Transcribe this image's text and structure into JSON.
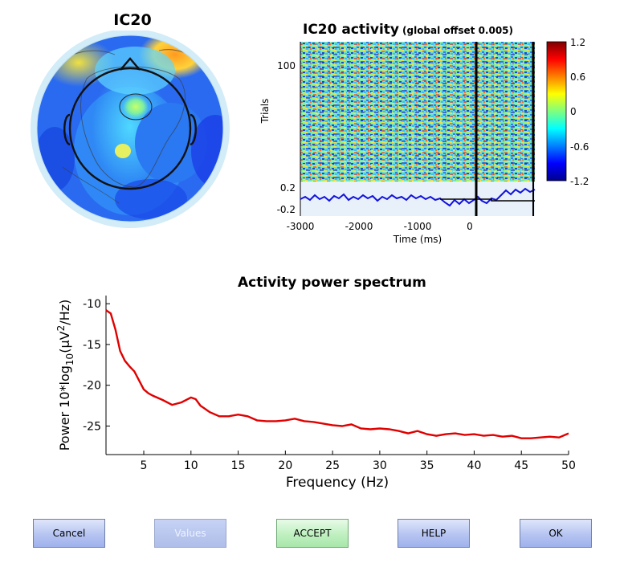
{
  "topomap": {
    "title": "IC20"
  },
  "erpimage": {
    "title": "IC20 activity",
    "subtitle": "(global offset 0.005)",
    "ylabel": "Trials",
    "ytick_top": "100",
    "xlabel": "Time (ms)",
    "xticks": [
      "-3000",
      "-2000",
      "-1000",
      "0"
    ],
    "erp_ticks": [
      "0.2",
      "-0.2"
    ],
    "colorbar_ticks": [
      "1.2",
      "0.6",
      "0",
      "-0.6",
      "-1.2"
    ]
  },
  "spectrum": {
    "title": "Activity power spectrum",
    "ylabel_main": "Power 10*log",
    "ylabel_sub": "10",
    "ylabel_rest": "(μV",
    "ylabel_sup": "2",
    "ylabel_end": "/Hz)",
    "xlabel": "Frequency (Hz)",
    "xticks": [
      "5",
      "10",
      "15",
      "20",
      "25",
      "30",
      "35",
      "40",
      "45",
      "50"
    ],
    "yticks": [
      "-10",
      "-15",
      "-20",
      "-25"
    ]
  },
  "chart_data": {
    "type": "line",
    "title": "Activity power spectrum",
    "xlabel": "Frequency (Hz)",
    "ylabel": "Power 10*log10(μV2/Hz)",
    "xlim": [
      1,
      50
    ],
    "ylim": [
      -28.5,
      -9
    ],
    "series": [
      {
        "color": "#e00000",
        "x": [
          1,
          1.5,
          2,
          2.5,
          3,
          3.5,
          4,
          4.5,
          5,
          5.5,
          6,
          7,
          8,
          9,
          10,
          10.5,
          11,
          12,
          13,
          14,
          15,
          16,
          17,
          18,
          19,
          20,
          21,
          22,
          23,
          24,
          25,
          26,
          27,
          28,
          29,
          30,
          31,
          32,
          33,
          34,
          35,
          36,
          37,
          38,
          39,
          40,
          41,
          42,
          43,
          44,
          45,
          46,
          47,
          48,
          49,
          50
        ],
        "y": [
          -10.8,
          -11.2,
          -13.2,
          -15.8,
          -17,
          -17.7,
          -18.3,
          -19.4,
          -20.5,
          -21,
          -21.3,
          -21.8,
          -22.4,
          -22.1,
          -21.5,
          -21.7,
          -22.5,
          -23.3,
          -23.8,
          -23.8,
          -23.6,
          -23.8,
          -24.3,
          -24.4,
          -24.4,
          -24.3,
          -24.1,
          -24.4,
          -24.5,
          -24.7,
          -24.9,
          -25.0,
          -24.8,
          -25.3,
          -25.4,
          -25.3,
          -25.4,
          -25.6,
          -25.9,
          -25.6,
          -26.0,
          -26.2,
          -26.0,
          -25.9,
          -26.1,
          -26.0,
          -26.2,
          -26.1,
          -26.3,
          -26.2,
          -26.5,
          -26.5,
          -26.4,
          -26.3,
          -26.4,
          -25.9
        ]
      }
    ]
  },
  "buttons": {
    "cancel": "Cancel",
    "values": "Values",
    "accept": "ACCEPT",
    "help": "HELP",
    "ok": "OK"
  }
}
